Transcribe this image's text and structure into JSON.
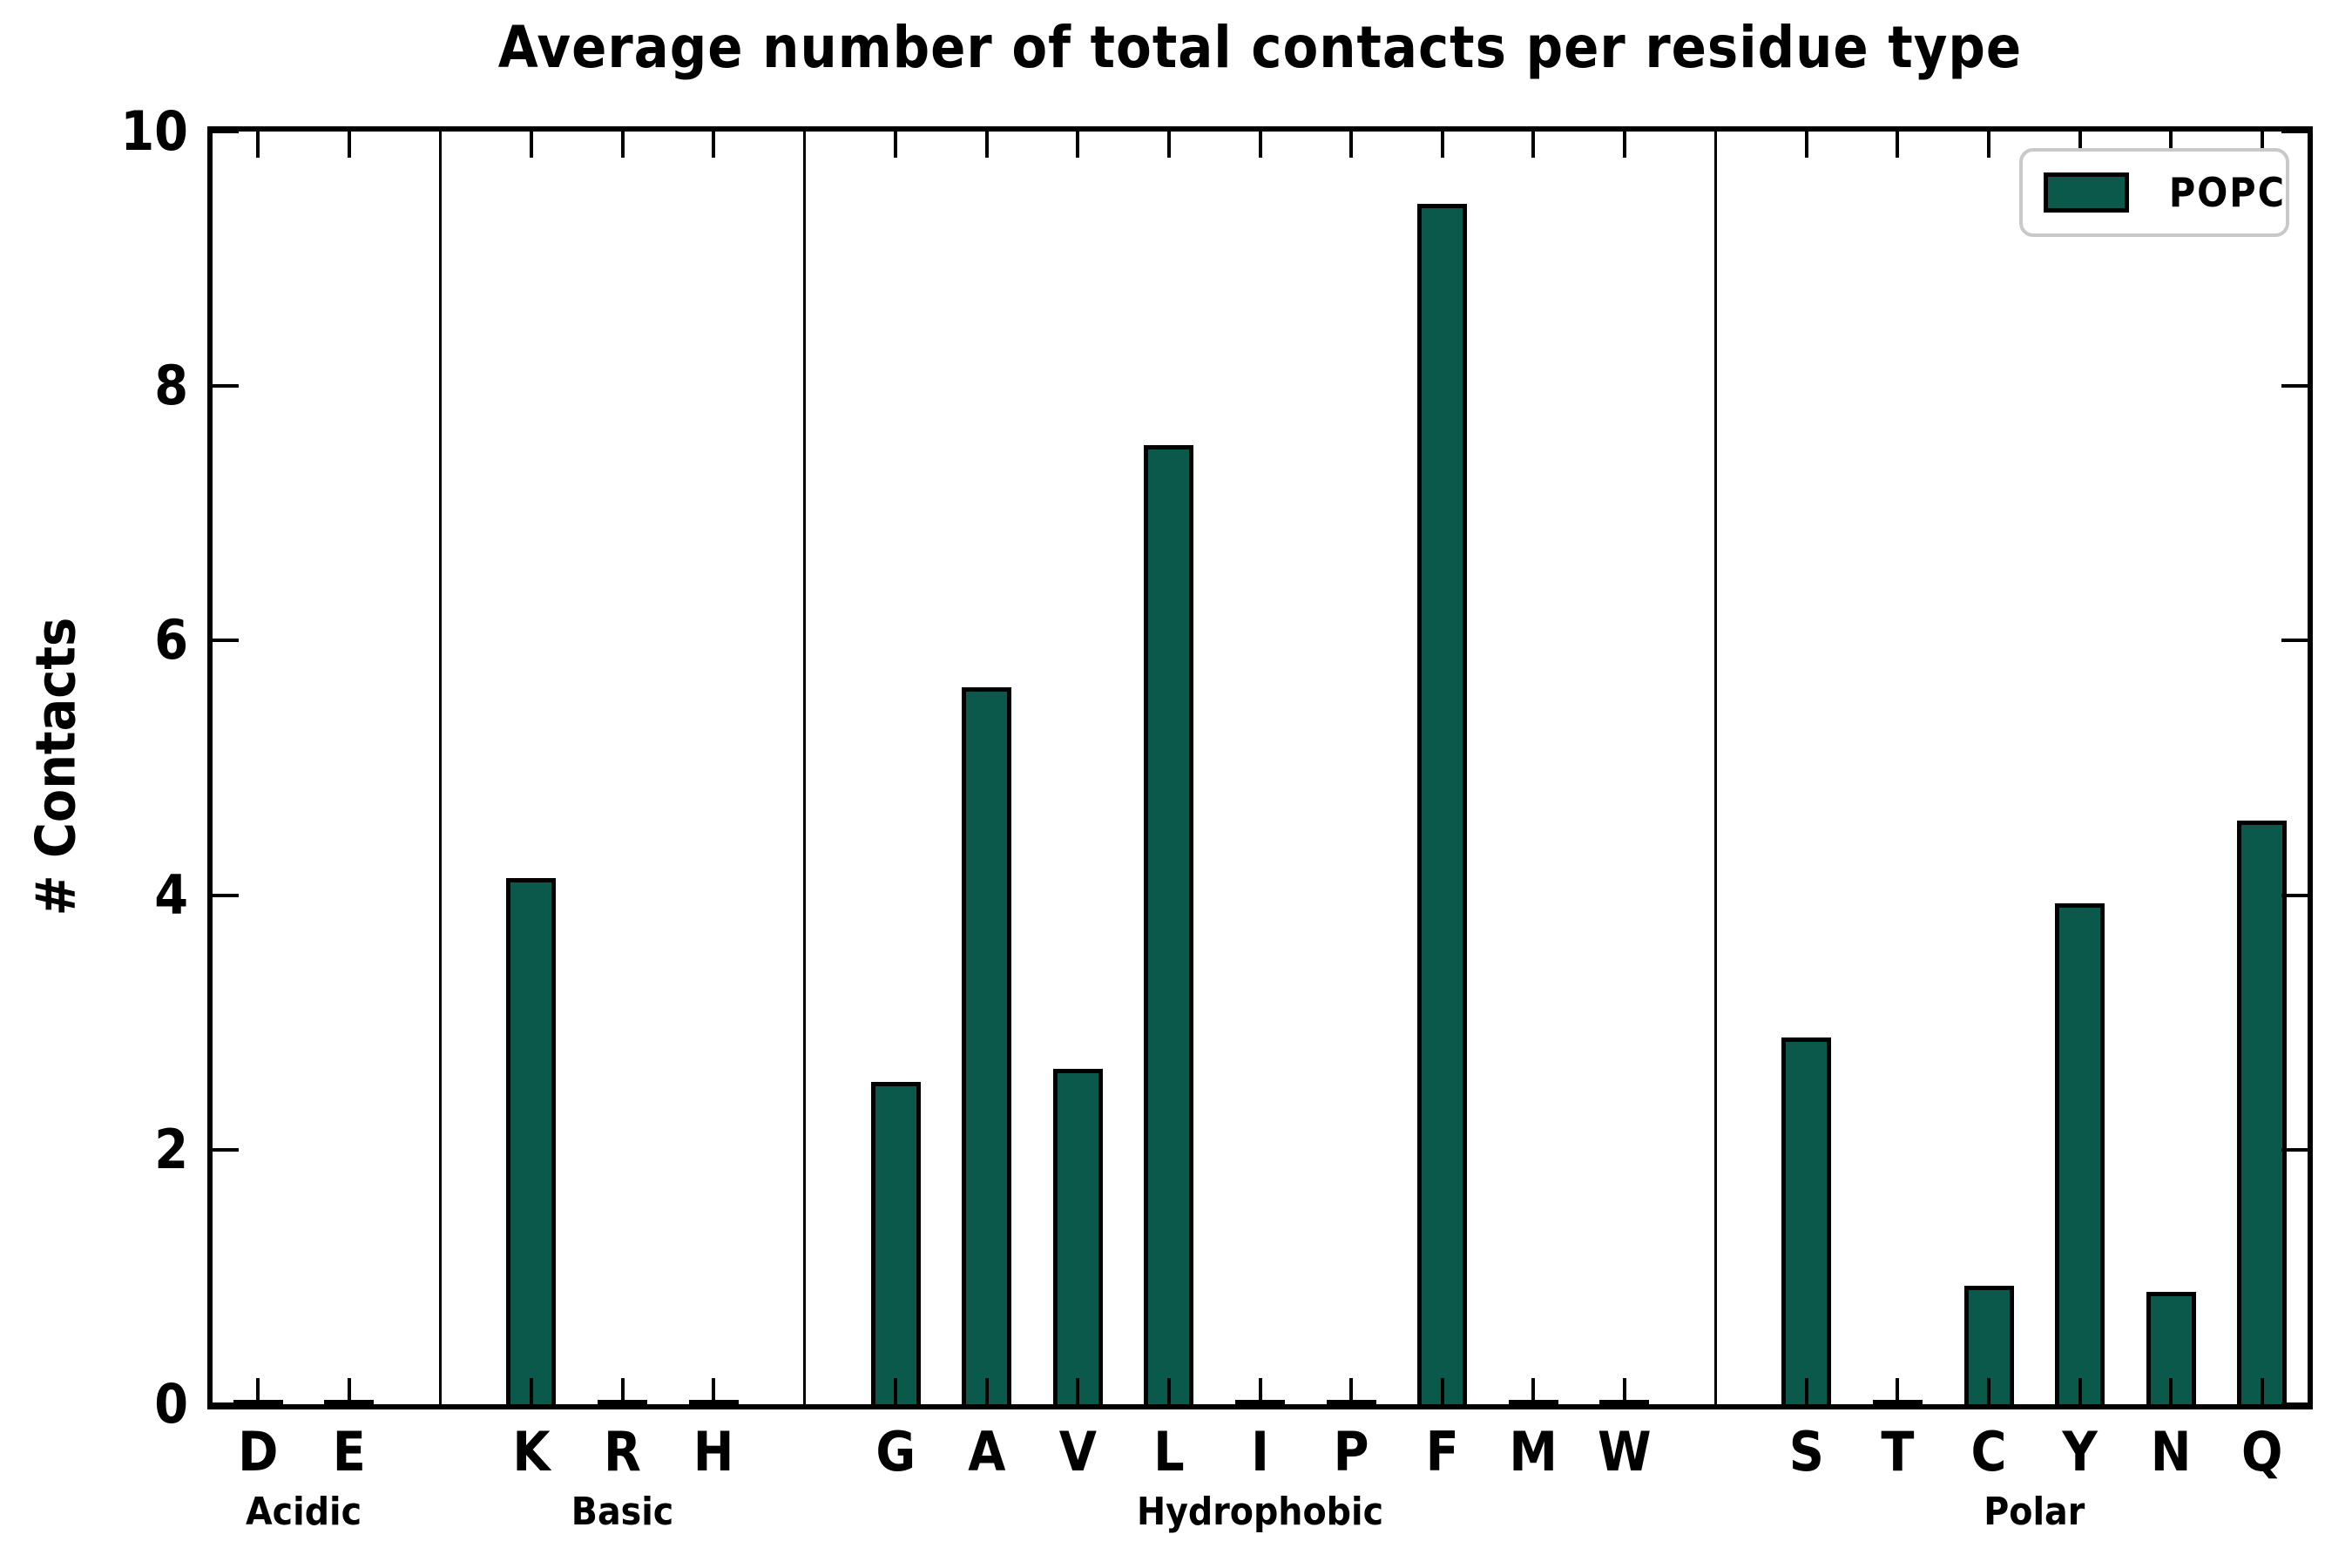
{
  "title": "Average number of total contacts per residue type",
  "y_axis_label": "# Contacts",
  "legend": {
    "label": "POPC"
  },
  "colors": {
    "bar_fill": "#0a594b",
    "bar_edge": "#000000",
    "axis": "#000000",
    "legend_border": "#c9c9c9",
    "background": "#ffffff"
  },
  "chart_data": {
    "type": "bar",
    "title": "Average number of total contacts per residue type",
    "xlabel": "",
    "ylabel": "# Contacts",
    "ylim": [
      0,
      10
    ],
    "yticks": [
      0,
      2,
      4,
      6,
      8,
      10
    ],
    "grid": false,
    "legend_entries": [
      "POPC"
    ],
    "legend_position": "upper right",
    "series_name": "POPC",
    "groups": [
      {
        "label": "Acidic",
        "categories": [
          "D",
          "E"
        ],
        "values": [
          0,
          0
        ]
      },
      {
        "label": "Basic",
        "categories": [
          "K",
          "R",
          "H"
        ],
        "values": [
          4.1,
          0,
          0
        ]
      },
      {
        "label": "Hydrophobic",
        "categories": [
          "G",
          "A",
          "V",
          "L",
          "I",
          "P",
          "F",
          "M",
          "W"
        ],
        "values": [
          2.5,
          5.6,
          2.6,
          7.5,
          0,
          0,
          9.4,
          0,
          0
        ]
      },
      {
        "label": "Polar",
        "categories": [
          "S",
          "T",
          "C",
          "Y",
          "N",
          "Q"
        ],
        "values": [
          2.85,
          0,
          0.9,
          3.9,
          0.85,
          4.55
        ]
      }
    ]
  }
}
